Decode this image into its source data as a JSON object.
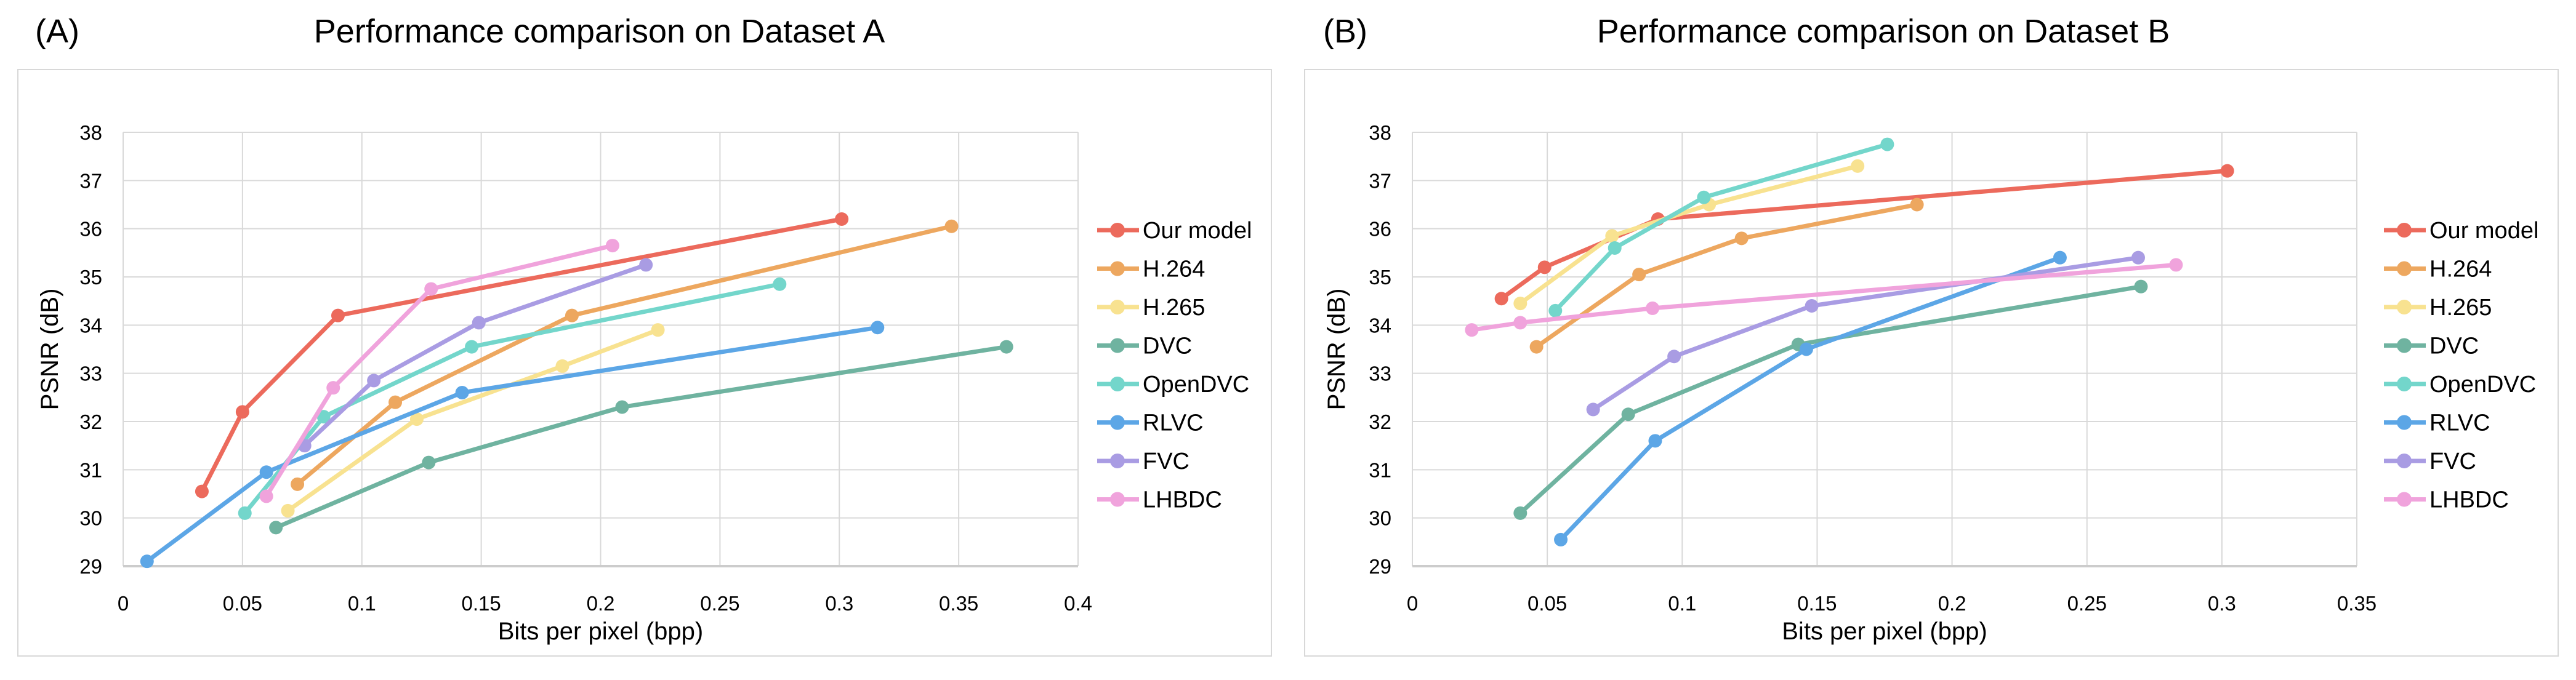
{
  "figure": {
    "background": "#ffffff",
    "panel_border_color": "#d8d8d8",
    "grid_color": "#d9d9d9",
    "axis_line_color": "#cccccc",
    "text_color": "#000000"
  },
  "legend": {
    "entries": [
      "Our model",
      "H.264",
      "H.265",
      "DVC",
      "OpenDVC",
      "RLVC",
      "FVC",
      "LHBDC"
    ]
  },
  "chart_data": [
    {
      "id": "A",
      "type": "line",
      "corner_label": "(A)",
      "title": "Performance comparison on Dataset A",
      "xlabel": "Bits per pixel (bpp)",
      "ylabel": "PSNR (dB)",
      "xlim": [
        0,
        0.4
      ],
      "ylim": [
        29,
        38
      ],
      "x_tick_values": [
        0,
        0.05,
        0.1,
        0.15,
        0.2,
        0.25,
        0.3,
        0.35,
        0.4
      ],
      "x_tick_labels": [
        "0",
        "0.05",
        "0.1",
        "0.15",
        "0.2",
        "0.25",
        "0.3",
        "0.35",
        "0.4"
      ],
      "y_tick_values": [
        29,
        30,
        31,
        32,
        33,
        34,
        35,
        36,
        37,
        38
      ],
      "grid": true,
      "legend_position": "right",
      "series": [
        {
          "name": "Our model",
          "color": "#EC6A5C",
          "points": [
            [
              0.033,
              30.55
            ],
            [
              0.05,
              32.2
            ],
            [
              0.09,
              34.2
            ],
            [
              0.301,
              36.2
            ]
          ]
        },
        {
          "name": "H.264",
          "color": "#EDA75F",
          "points": [
            [
              0.073,
              30.7
            ],
            [
              0.114,
              32.4
            ],
            [
              0.188,
              34.2
            ],
            [
              0.347,
              36.05
            ]
          ]
        },
        {
          "name": "H.265",
          "color": "#F8E290",
          "points": [
            [
              0.069,
              30.15
            ],
            [
              0.123,
              32.05
            ],
            [
              0.184,
              33.15
            ],
            [
              0.224,
              33.9
            ]
          ]
        },
        {
          "name": "DVC",
          "color": "#6FB3A0",
          "points": [
            [
              0.064,
              29.8
            ],
            [
              0.128,
              31.15
            ],
            [
              0.209,
              32.3
            ],
            [
              0.37,
              33.55
            ]
          ]
        },
        {
          "name": "OpenDVC",
          "color": "#73D6CB",
          "points": [
            [
              0.051,
              30.1
            ],
            [
              0.084,
              32.1
            ],
            [
              0.146,
              33.55
            ],
            [
              0.275,
              34.85
            ]
          ]
        },
        {
          "name": "RLVC",
          "color": "#5CA6E6",
          "points": [
            [
              0.01,
              29.1
            ],
            [
              0.06,
              30.95
            ],
            [
              0.142,
              32.6
            ],
            [
              0.316,
              33.95
            ]
          ]
        },
        {
          "name": "FVC",
          "color": "#A99CE3",
          "points": [
            [
              0.076,
              31.5
            ],
            [
              0.105,
              32.85
            ],
            [
              0.149,
              34.05
            ],
            [
              0.219,
              35.25
            ]
          ]
        },
        {
          "name": "LHBDC",
          "color": "#F0A3DC",
          "points": [
            [
              0.06,
              30.45
            ],
            [
              0.088,
              32.7
            ],
            [
              0.129,
              34.75
            ],
            [
              0.205,
              35.65
            ]
          ]
        }
      ]
    },
    {
      "id": "B",
      "type": "line",
      "corner_label": "(B)",
      "title": "Performance comparison on Dataset B",
      "xlabel": "Bits per pixel (bpp)",
      "ylabel": "PSNR (dB)",
      "xlim": [
        0,
        0.35
      ],
      "ylim": [
        29,
        38
      ],
      "x_tick_values": [
        0,
        0.05,
        0.1,
        0.15,
        0.2,
        0.25,
        0.3,
        0.35
      ],
      "x_tick_labels": [
        "0",
        "0.05",
        "0.1",
        "0.15",
        "0.2",
        "0.25",
        "0.3",
        "0.35"
      ],
      "y_tick_values": [
        29,
        30,
        31,
        32,
        33,
        34,
        35,
        36,
        37,
        38
      ],
      "grid": true,
      "legend_position": "right",
      "series": [
        {
          "name": "Our model",
          "color": "#EC6A5C",
          "points": [
            [
              0.033,
              34.55
            ],
            [
              0.049,
              35.2
            ],
            [
              0.091,
              36.2
            ],
            [
              0.302,
              37.2
            ]
          ]
        },
        {
          "name": "H.264",
          "color": "#EDA75F",
          "points": [
            [
              0.046,
              33.55
            ],
            [
              0.084,
              35.05
            ],
            [
              0.122,
              35.8
            ],
            [
              0.187,
              36.5
            ]
          ]
        },
        {
          "name": "H.265",
          "color": "#F8E290",
          "points": [
            [
              0.04,
              34.45
            ],
            [
              0.074,
              35.85
            ],
            [
              0.11,
              36.5
            ],
            [
              0.165,
              37.3
            ]
          ]
        },
        {
          "name": "DVC",
          "color": "#6FB3A0",
          "points": [
            [
              0.04,
              30.1
            ],
            [
              0.08,
              32.15
            ],
            [
              0.143,
              33.6
            ],
            [
              0.27,
              34.8
            ]
          ]
        },
        {
          "name": "OpenDVC",
          "color": "#73D6CB",
          "points": [
            [
              0.053,
              34.3
            ],
            [
              0.075,
              35.6
            ],
            [
              0.108,
              36.65
            ],
            [
              0.176,
              37.75
            ]
          ]
        },
        {
          "name": "RLVC",
          "color": "#5CA6E6",
          "points": [
            [
              0.055,
              29.55
            ],
            [
              0.09,
              31.6
            ],
            [
              0.146,
              33.5
            ],
            [
              0.24,
              35.4
            ]
          ]
        },
        {
          "name": "FVC",
          "color": "#A99CE3",
          "points": [
            [
              0.067,
              32.25
            ],
            [
              0.097,
              33.35
            ],
            [
              0.148,
              34.4
            ],
            [
              0.269,
              35.4
            ]
          ]
        },
        {
          "name": "LHBDC",
          "color": "#F0A3DC",
          "points": [
            [
              0.022,
              33.9
            ],
            [
              0.04,
              34.05
            ],
            [
              0.089,
              34.35
            ],
            [
              0.283,
              35.25
            ]
          ]
        }
      ]
    }
  ]
}
